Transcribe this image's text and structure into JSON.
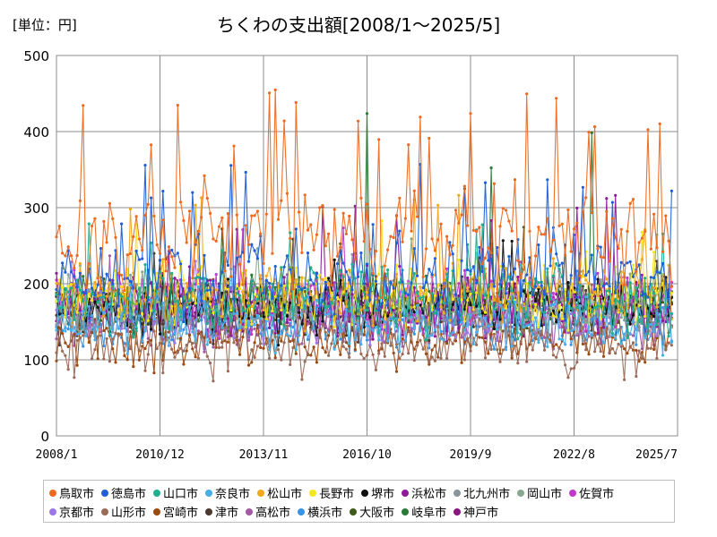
{
  "unit_label": "[単位：円]",
  "chart_data": {
    "type": "line",
    "title": "ちくわの支出額[2008/1～2025/5]",
    "xlabel": "",
    "ylabel": "",
    "x_ticks": [
      "2008/1",
      "2010/12",
      "2013/11",
      "2016/10",
      "2019/9",
      "2022/8",
      "2025/7"
    ],
    "x_range": [
      "2008/1",
      "2025/7"
    ],
    "ylim": [
      0,
      500
    ],
    "y_ticks": [
      0,
      100,
      200,
      300,
      400,
      500
    ],
    "grid": true,
    "legend_position": "bottom",
    "series": [
      {
        "name": "鳥取市",
        "color": "#ed6a1f",
        "base": 260,
        "amp": 60,
        "spike": 460,
        "spikeRate": 0.08
      },
      {
        "name": "徳島市",
        "color": "#1f5fd6",
        "base": 215,
        "amp": 45,
        "spike": 360,
        "spikeRate": 0.05
      },
      {
        "name": "山口市",
        "color": "#1fae8e",
        "base": 180,
        "amp": 35,
        "spike": 280,
        "spikeRate": 0.03
      },
      {
        "name": "奈良市",
        "color": "#48aee8",
        "base": 150,
        "amp": 30,
        "spike": 240,
        "spikeRate": 0.02
      },
      {
        "name": "松山市",
        "color": "#f2a81d",
        "base": 190,
        "amp": 35,
        "spike": 320,
        "spikeRate": 0.03
      },
      {
        "name": "長野市",
        "color": "#f5e61c",
        "base": 185,
        "amp": 35,
        "spike": 300,
        "spikeRate": 0.03
      },
      {
        "name": "堺市",
        "color": "#111111",
        "base": 170,
        "amp": 30,
        "spike": 260,
        "spikeRate": 0.02
      },
      {
        "name": "浜松市",
        "color": "#8e1a9a",
        "base": 175,
        "amp": 35,
        "spike": 320,
        "spikeRate": 0.03
      },
      {
        "name": "北九州市",
        "color": "#8a949c",
        "base": 165,
        "amp": 30,
        "spike": 250,
        "spikeRate": 0.02
      },
      {
        "name": "岡山市",
        "color": "#8aa88f",
        "base": 175,
        "amp": 30,
        "spike": 270,
        "spikeRate": 0.02
      },
      {
        "name": "佐賀市",
        "color": "#c238c9",
        "base": 180,
        "amp": 35,
        "spike": 320,
        "spikeRate": 0.03
      },
      {
        "name": "京都市",
        "color": "#9a78e6",
        "base": 160,
        "amp": 30,
        "spike": 250,
        "spikeRate": 0.02
      },
      {
        "name": "山形市",
        "color": "#9c6b58",
        "base": 120,
        "amp": 30,
        "spike": 200,
        "spikeRate": 0.02
      },
      {
        "name": "宮崎市",
        "color": "#9b4a12",
        "base": 125,
        "amp": 30,
        "spike": 210,
        "spikeRate": 0.02
      },
      {
        "name": "津市",
        "color": "#4a3a30",
        "base": 165,
        "amp": 30,
        "spike": 270,
        "spikeRate": 0.02
      },
      {
        "name": "高松市",
        "color": "#a35aa3",
        "base": 150,
        "amp": 30,
        "spike": 240,
        "spikeRate": 0.02
      },
      {
        "name": "横浜市",
        "color": "#3a94e6",
        "base": 145,
        "amp": 25,
        "spike": 220,
        "spikeRate": 0.02
      },
      {
        "name": "大阪市",
        "color": "#3f5a1c",
        "base": 170,
        "amp": 30,
        "spike": 300,
        "spikeRate": 0.02
      },
      {
        "name": "岐阜市",
        "color": "#2a7a3a",
        "base": 175,
        "amp": 30,
        "spike": 430,
        "spikeRate": 0.015
      },
      {
        "name": "神戸市",
        "color": "#8a1780",
        "base": 165,
        "amp": 30,
        "spike": 270,
        "spikeRate": 0.02
      }
    ]
  }
}
